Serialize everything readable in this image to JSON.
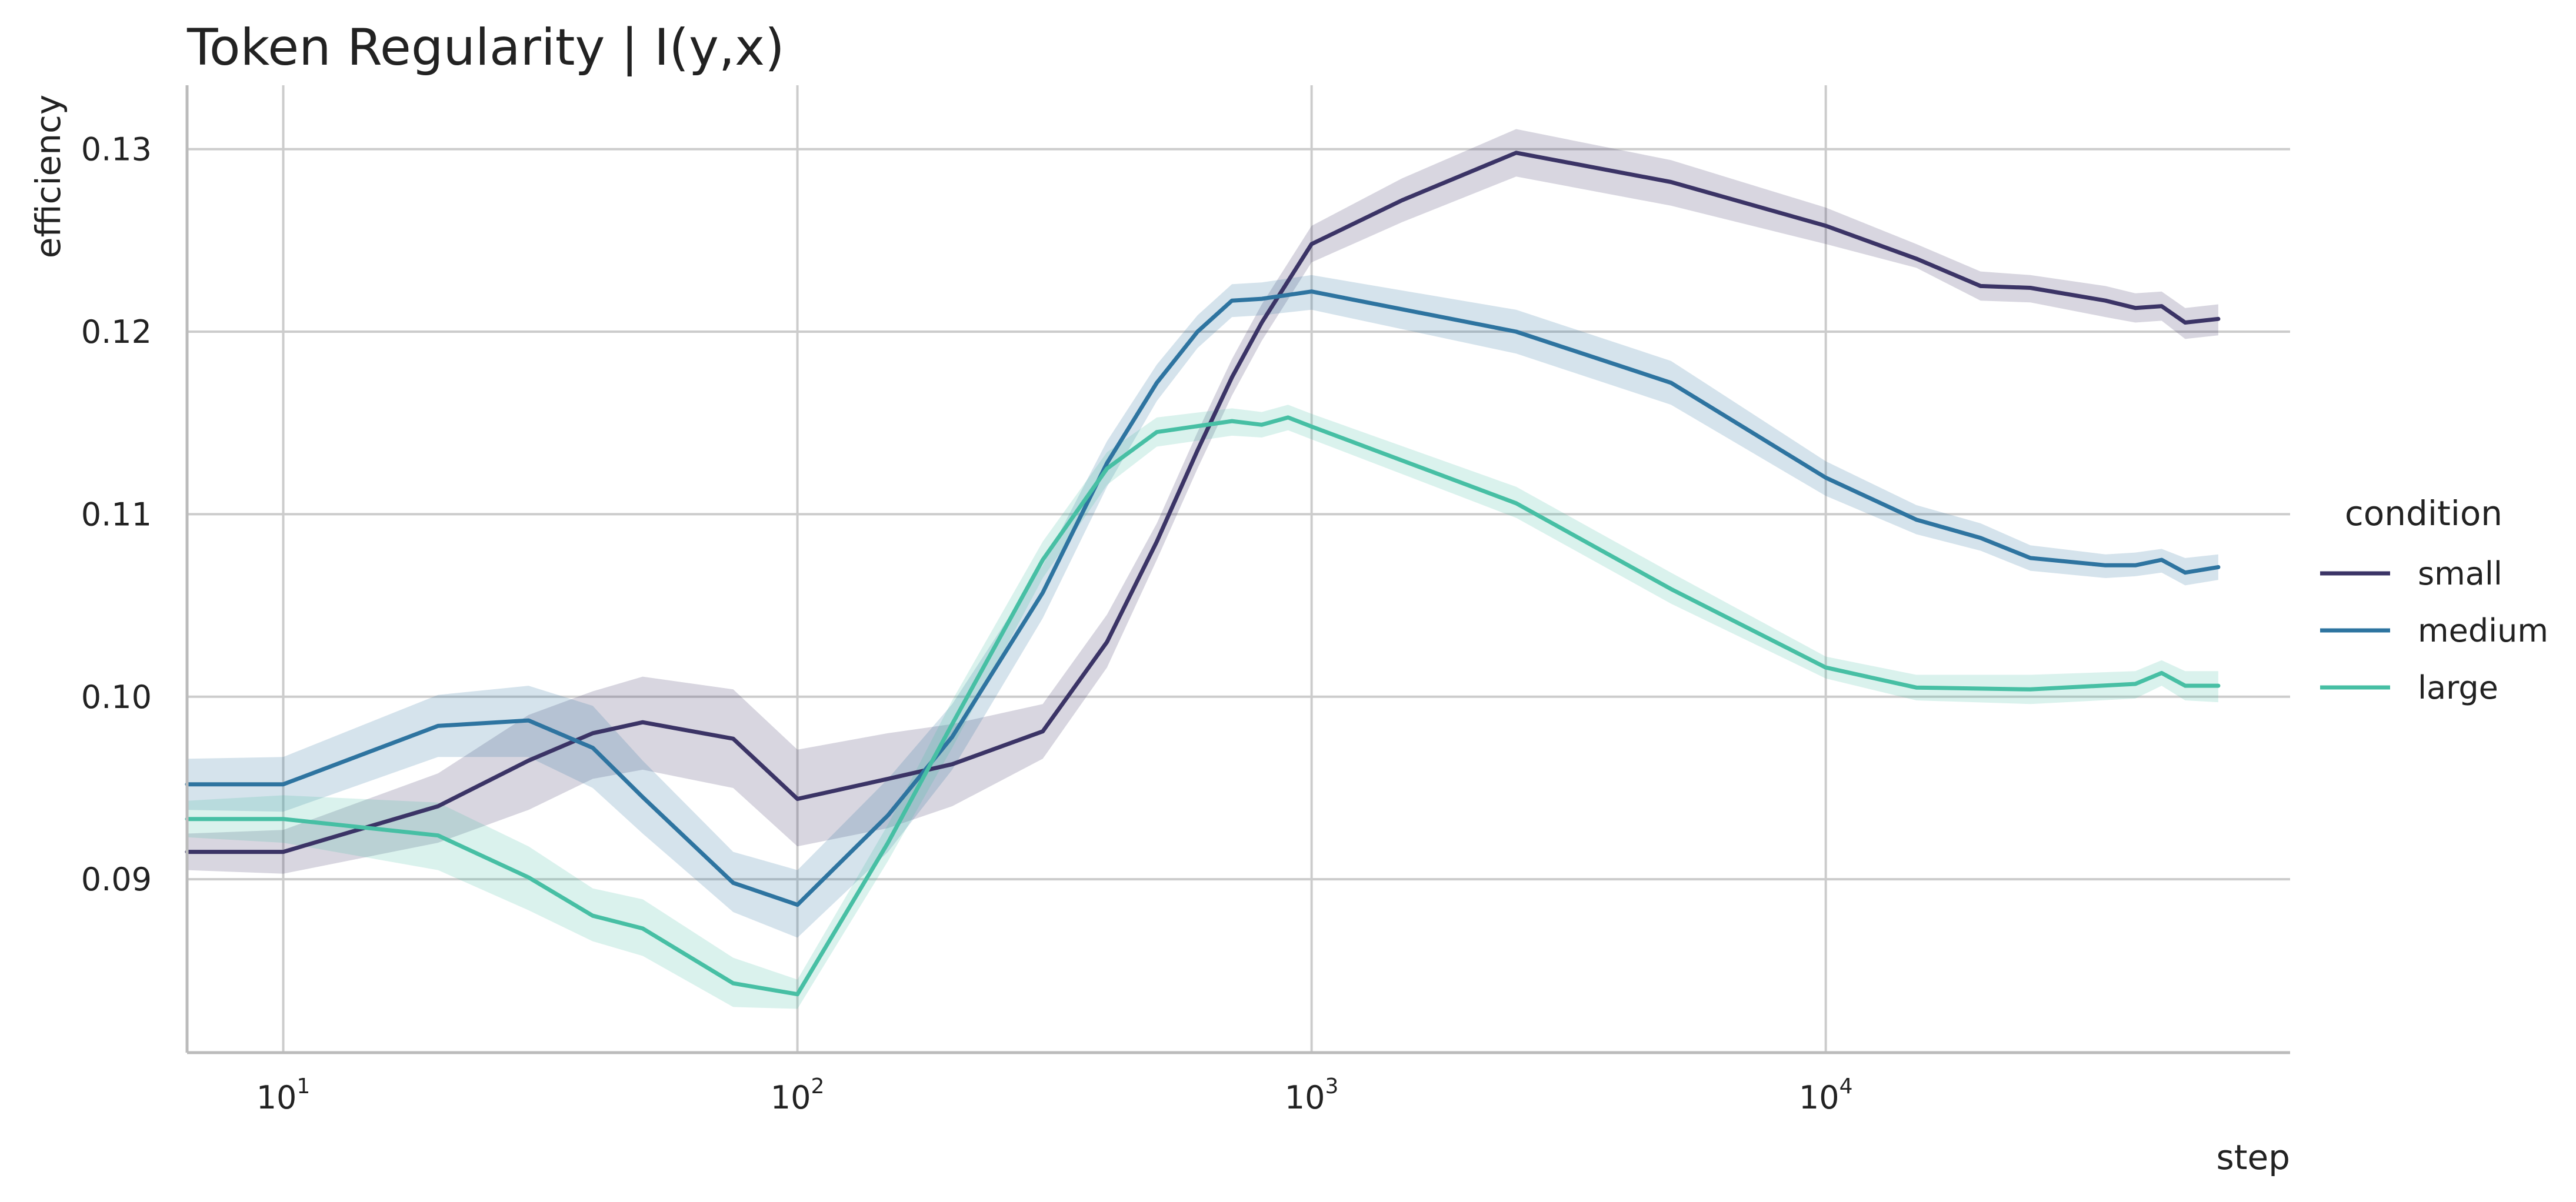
{
  "chart_data": {
    "type": "line",
    "title": "Token Regularity | I(y,x)",
    "xlabel": "step",
    "ylabel": "efficiency",
    "xscale": "log",
    "xlim": [
      6.5,
      80000
    ],
    "ylim": [
      0.0805,
      0.1335
    ],
    "x_ticks": [
      {
        "value": 10,
        "base": "10",
        "exp": "1"
      },
      {
        "value": 100,
        "base": "10",
        "exp": "2"
      },
      {
        "value": 1000,
        "base": "10",
        "exp": "3"
      },
      {
        "value": 10000,
        "base": "10",
        "exp": "4"
      }
    ],
    "y_ticks": [
      {
        "value": 0.09,
        "label": "0.09"
      },
      {
        "value": 0.1,
        "label": "0.10"
      },
      {
        "value": 0.11,
        "label": "0.11"
      },
      {
        "value": 0.12,
        "label": "0.12"
      },
      {
        "value": 0.13,
        "label": "0.13"
      }
    ],
    "grid": true,
    "legend": {
      "title": "condition",
      "placement": "right"
    },
    "series": [
      {
        "name": "small",
        "color": "#3b3466",
        "points": [
          [
            6.5,
            0.0915,
            0.0905,
            0.0925
          ],
          [
            10,
            0.0915,
            0.0903,
            0.0927
          ],
          [
            20,
            0.094,
            0.092,
            0.0958
          ],
          [
            30,
            0.0965,
            0.0938,
            0.099
          ],
          [
            40,
            0.098,
            0.0955,
            0.1003
          ],
          [
            50,
            0.0986,
            0.096,
            0.1011
          ],
          [
            75,
            0.0977,
            0.095,
            0.1004
          ],
          [
            100,
            0.0944,
            0.0918,
            0.0971
          ],
          [
            150,
            0.0955,
            0.0928,
            0.098
          ],
          [
            200,
            0.0963,
            0.094,
            0.0985
          ],
          [
            300,
            0.0981,
            0.0966,
            0.0996
          ],
          [
            400,
            0.103,
            0.1016,
            0.1045
          ],
          [
            500,
            0.1085,
            0.1075,
            0.1095
          ],
          [
            600,
            0.1135,
            0.1125,
            0.1145
          ],
          [
            700,
            0.1175,
            0.1165,
            0.1185
          ],
          [
            800,
            0.1205,
            0.1195,
            0.1215
          ],
          [
            1000,
            0.1248,
            0.1238,
            0.1258
          ],
          [
            1500,
            0.1272,
            0.126,
            0.1284
          ],
          [
            2500,
            0.1298,
            0.1285,
            0.1311
          ],
          [
            5000,
            0.1282,
            0.1269,
            0.1294
          ],
          [
            10000,
            0.1258,
            0.1248,
            0.1268
          ],
          [
            15000,
            0.124,
            0.1235,
            0.1248
          ],
          [
            20000,
            0.1225,
            0.1217,
            0.1233
          ],
          [
            25000,
            0.1224,
            0.1216,
            0.1231
          ],
          [
            35000,
            0.1217,
            0.1208,
            0.1225
          ],
          [
            40000,
            0.1213,
            0.1205,
            0.1221
          ],
          [
            45000,
            0.1214,
            0.1206,
            0.1222
          ],
          [
            50000,
            0.1205,
            0.1196,
            0.1213
          ],
          [
            58000,
            0.1207,
            0.1198,
            0.1215
          ]
        ]
      },
      {
        "name": "medium",
        "color": "#2e74a0",
        "points": [
          [
            6.5,
            0.0952,
            0.0938,
            0.0966
          ],
          [
            10,
            0.0952,
            0.0937,
            0.0967
          ],
          [
            20,
            0.0984,
            0.0967,
            0.1001
          ],
          [
            30,
            0.0987,
            0.0967,
            0.1006
          ],
          [
            40,
            0.0972,
            0.095,
            0.0995
          ],
          [
            50,
            0.0945,
            0.0925,
            0.0965
          ],
          [
            75,
            0.0898,
            0.0882,
            0.0915
          ],
          [
            100,
            0.0886,
            0.0868,
            0.0905
          ],
          [
            150,
            0.0935,
            0.0915,
            0.0955
          ],
          [
            200,
            0.0978,
            0.096,
            0.0996
          ],
          [
            300,
            0.1057,
            0.1043,
            0.1072
          ],
          [
            400,
            0.1128,
            0.1115,
            0.114
          ],
          [
            500,
            0.1172,
            0.1162,
            0.1182
          ],
          [
            600,
            0.12,
            0.1191,
            0.1209
          ],
          [
            700,
            0.1217,
            0.1208,
            0.1226
          ],
          [
            800,
            0.1218,
            0.1209,
            0.1227
          ],
          [
            1000,
            0.1222,
            0.1212,
            0.1231
          ],
          [
            2500,
            0.12,
            0.1188,
            0.1212
          ],
          [
            5000,
            0.1172,
            0.116,
            0.1184
          ],
          [
            10000,
            0.112,
            0.111,
            0.1129
          ],
          [
            15000,
            0.1097,
            0.1089,
            0.1105
          ],
          [
            20000,
            0.1087,
            0.108,
            0.1095
          ],
          [
            25000,
            0.1076,
            0.1069,
            0.1083
          ],
          [
            35000,
            0.1072,
            0.1065,
            0.1078
          ],
          [
            40000,
            0.1072,
            0.1066,
            0.1079
          ],
          [
            45000,
            0.1075,
            0.1068,
            0.1081
          ],
          [
            50000,
            0.1068,
            0.1061,
            0.1076
          ],
          [
            58000,
            0.1071,
            0.1064,
            0.1078
          ]
        ]
      },
      {
        "name": "large",
        "color": "#47bfa4",
        "points": [
          [
            6.5,
            0.0933,
            0.0923,
            0.0943
          ],
          [
            10,
            0.0933,
            0.092,
            0.0946
          ],
          [
            20,
            0.0924,
            0.0905,
            0.0942
          ],
          [
            30,
            0.0901,
            0.0883,
            0.0918
          ],
          [
            40,
            0.088,
            0.0866,
            0.0895
          ],
          [
            50,
            0.0873,
            0.0858,
            0.0889
          ],
          [
            75,
            0.0843,
            0.083,
            0.0857
          ],
          [
            100,
            0.0837,
            0.0829,
            0.0845
          ],
          [
            150,
            0.092,
            0.091,
            0.093
          ],
          [
            200,
            0.0985,
            0.0972,
            0.0998
          ],
          [
            300,
            0.1075,
            0.1065,
            0.1085
          ],
          [
            400,
            0.1125,
            0.1116,
            0.1134
          ],
          [
            500,
            0.1145,
            0.1137,
            0.1153
          ],
          [
            700,
            0.1151,
            0.1143,
            0.1158
          ],
          [
            800,
            0.1149,
            0.1142,
            0.1156
          ],
          [
            900,
            0.1153,
            0.1146,
            0.116
          ],
          [
            1000,
            0.1148,
            0.1141,
            0.1155
          ],
          [
            2500,
            0.1106,
            0.1098,
            0.1115
          ],
          [
            5000,
            0.1059,
            0.1051,
            0.1068
          ],
          [
            10000,
            0.1016,
            0.101,
            0.1022
          ],
          [
            15000,
            0.1005,
            0.0998,
            0.1012
          ],
          [
            25000,
            0.1004,
            0.0996,
            0.1012
          ],
          [
            40000,
            0.1007,
            0.0999,
            0.1014
          ],
          [
            45000,
            0.1013,
            0.1006,
            0.102
          ],
          [
            50000,
            0.1006,
            0.0998,
            0.1014
          ],
          [
            58000,
            0.1006,
            0.0997,
            0.1014
          ]
        ]
      }
    ]
  }
}
